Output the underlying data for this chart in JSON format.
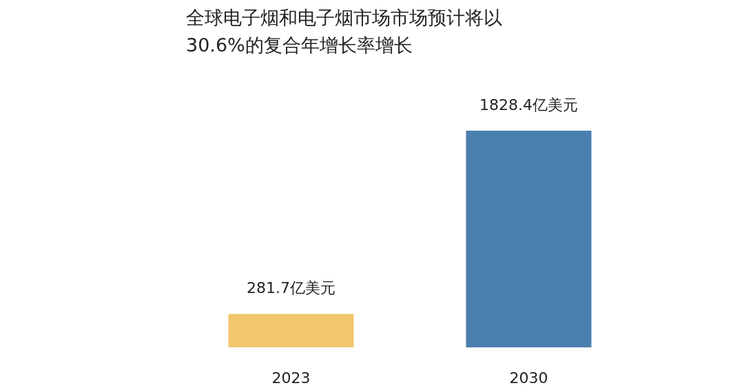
{
  "chart_data": {
    "type": "bar",
    "title": "全球电子烟和电子烟市场市场预计将以30.6%的复合年增长率增长",
    "categories": [
      "2023",
      "2030"
    ],
    "values": [
      281.7,
      1828.4
    ],
    "colors": [
      "#f2c66d",
      "#4a7fae"
    ],
    "value_labels": [
      "281.7亿美元",
      "1828.4亿美元"
    ]
  }
}
